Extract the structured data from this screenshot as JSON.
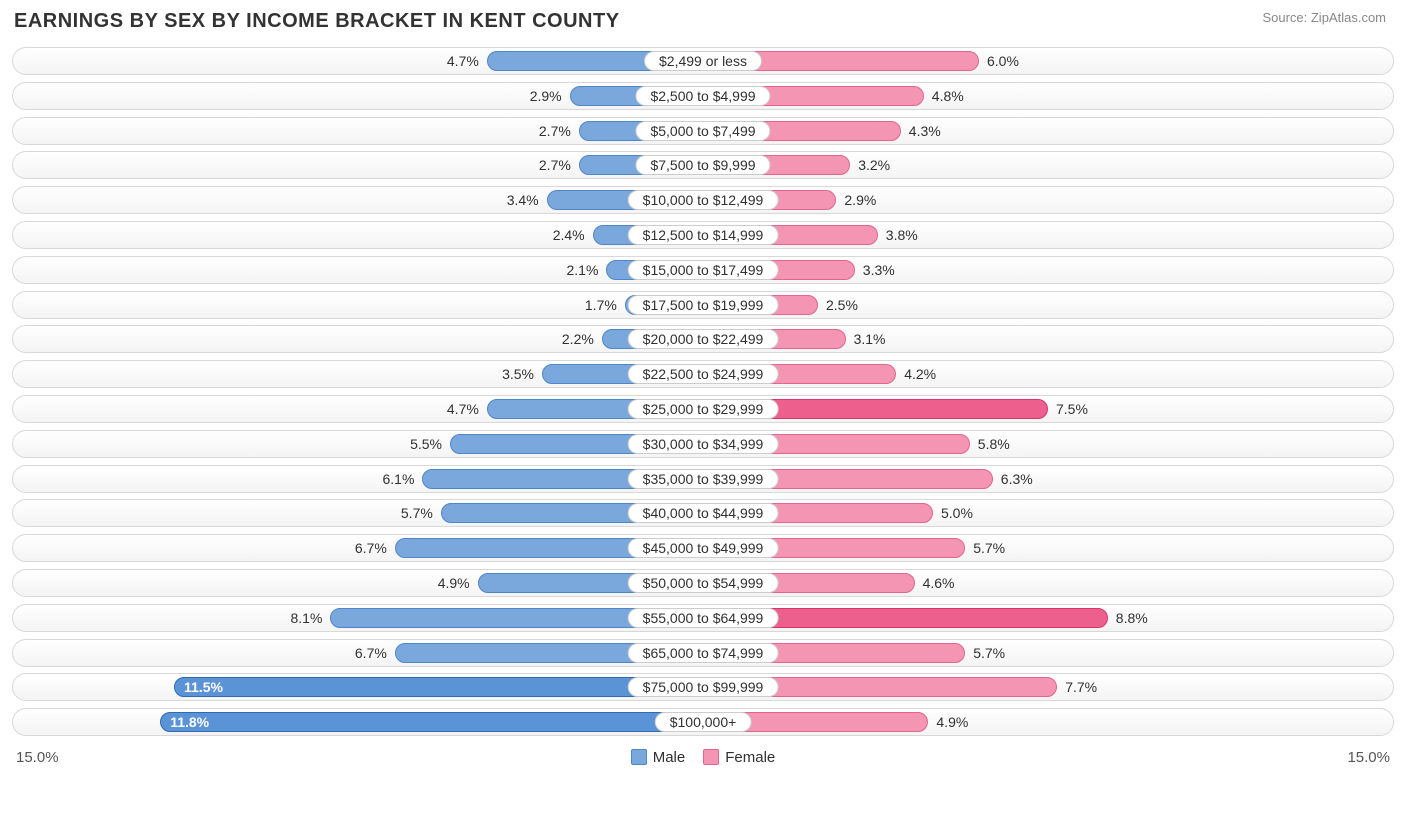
{
  "title": "EARNINGS BY SEX BY INCOME BRACKET IN KENT COUNTY",
  "source": "Source: ZipAtlas.com",
  "axis_max_pct": 15.0,
  "axis_label_left": "15.0%",
  "axis_label_right": "15.0%",
  "legend": {
    "male": "Male",
    "female": "Female"
  },
  "colors": {
    "male_fill": "#7aa8dd",
    "male_border": "#4f86c6",
    "male_highlight_fill": "#5a93d6",
    "male_highlight_border": "#2f6bb3",
    "female_fill": "#f495b3",
    "female_border": "#e2658f",
    "female_highlight_fill": "#ed5f8c",
    "female_highlight_border": "#d6376b",
    "track_border": "#d8d8d8",
    "track_bg_top": "#ffffff",
    "track_bg_bottom": "#f4f4f4",
    "pill_bg": "#ffffff",
    "pill_border": "#cccccc",
    "text": "#303030",
    "title_text": "#333333",
    "source_text": "#888888",
    "background": "#ffffff"
  },
  "rows": [
    {
      "category": "$2,499 or less",
      "male": 4.7,
      "female": 6.0
    },
    {
      "category": "$2,500 to $4,999",
      "male": 2.9,
      "female": 4.8
    },
    {
      "category": "$5,000 to $7,499",
      "male": 2.7,
      "female": 4.3
    },
    {
      "category": "$7,500 to $9,999",
      "male": 2.7,
      "female": 3.2
    },
    {
      "category": "$10,000 to $12,499",
      "male": 3.4,
      "female": 2.9
    },
    {
      "category": "$12,500 to $14,999",
      "male": 2.4,
      "female": 3.8
    },
    {
      "category": "$15,000 to $17,499",
      "male": 2.1,
      "female": 3.3
    },
    {
      "category": "$17,500 to $19,999",
      "male": 1.7,
      "female": 2.5
    },
    {
      "category": "$20,000 to $22,499",
      "male": 2.2,
      "female": 3.1
    },
    {
      "category": "$22,500 to $24,999",
      "male": 3.5,
      "female": 4.2
    },
    {
      "category": "$25,000 to $29,999",
      "male": 4.7,
      "female": 7.5,
      "female_hl": true
    },
    {
      "category": "$30,000 to $34,999",
      "male": 5.5,
      "female": 5.8
    },
    {
      "category": "$35,000 to $39,999",
      "male": 6.1,
      "female": 6.3
    },
    {
      "category": "$40,000 to $44,999",
      "male": 5.7,
      "female": 5.0
    },
    {
      "category": "$45,000 to $49,999",
      "male": 6.7,
      "female": 5.7
    },
    {
      "category": "$50,000 to $54,999",
      "male": 4.9,
      "female": 4.6
    },
    {
      "category": "$55,000 to $64,999",
      "male": 8.1,
      "female": 8.8,
      "female_hl": true
    },
    {
      "category": "$65,000 to $74,999",
      "male": 6.7,
      "female": 5.7
    },
    {
      "category": "$75,000 to $99,999",
      "male": 11.5,
      "female": 7.7,
      "male_hl": true
    },
    {
      "category": "$100,000+",
      "male": 11.8,
      "female": 4.9,
      "male_hl": true
    }
  ]
}
